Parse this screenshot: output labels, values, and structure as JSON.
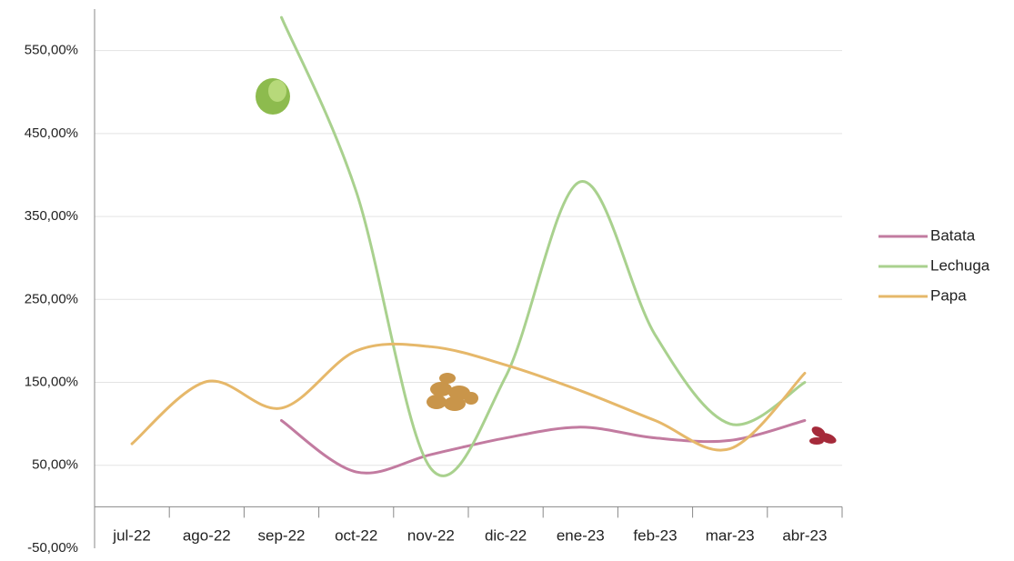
{
  "chart_data": {
    "type": "line",
    "categories": [
      "jul-22",
      "ago-22",
      "sep-22",
      "oct-22",
      "nov-22",
      "dic-22",
      "ene-23",
      "feb-23",
      "mar-23",
      "abr-23"
    ],
    "series": [
      {
        "name": "Batata",
        "color": "#c27ba0",
        "values": [
          null,
          null,
          104,
          42,
          63,
          83,
          96,
          83,
          80,
          104
        ]
      },
      {
        "name": "Lechuga",
        "color": "#a9d18e",
        "values": [
          null,
          null,
          590,
          380,
          46,
          157,
          392,
          207,
          100,
          150
        ]
      },
      {
        "name": "Papa",
        "color": "#e6b86a",
        "values": [
          76,
          151,
          119,
          188,
          193,
          171,
          140,
          104,
          70,
          161
        ]
      }
    ],
    "ylim": [
      -50,
      600
    ],
    "yticks": [
      {
        "value": -50,
        "label": "-50,00%"
      },
      {
        "value": 50,
        "label": "50,00%"
      },
      {
        "value": 150,
        "label": "150,00%"
      },
      {
        "value": 250,
        "label": "250,00%"
      },
      {
        "value": 350,
        "label": "350,00%"
      },
      {
        "value": 450,
        "label": "450,00%"
      },
      {
        "value": 550,
        "label": "550,00%"
      }
    ],
    "grid": true,
    "legend": "right"
  }
}
